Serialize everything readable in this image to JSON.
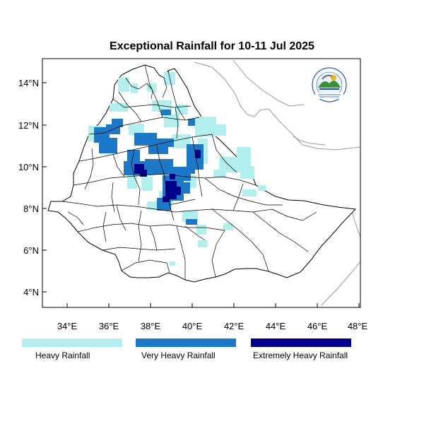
{
  "title": "Exceptional Rainfall for 10-11 Jul 2025",
  "axes": {
    "lon_ticks": [
      "34°E",
      "36°E",
      "38°E",
      "40°E",
      "42°E",
      "44°E",
      "46°E",
      "48°E"
    ],
    "lat_ticks": [
      "14°N",
      "12°N",
      "10°N",
      "8°N",
      "6°N",
      "4°N"
    ]
  },
  "legend": [
    {
      "label": "Heavy Rainfall",
      "color": "#b2eeee"
    },
    {
      "label": "Very Heavy Rainfall",
      "color": "#1e78c8"
    },
    {
      "label": "Extremely Heavy Rainfall",
      "color": "#00008b"
    }
  ],
  "logo": {
    "icon": "ethiopian-meteorology-institute-logo"
  }
}
